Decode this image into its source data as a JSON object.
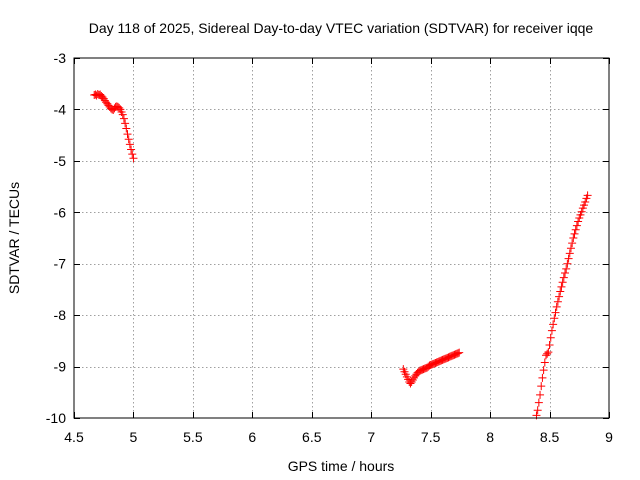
{
  "chart_data": {
    "type": "scatter",
    "title": "Day 118 of 2025, Sidereal Day-to-day VTEC variation (SDTVAR) for receiver iqqe",
    "xlabel": "GPS time / hours",
    "ylabel": "SDTVAR / TECUs",
    "xlim": [
      4.5,
      9
    ],
    "ylim": [
      -10,
      -3
    ],
    "xticks": [
      4.5,
      5,
      5.5,
      6,
      6.5,
      7,
      7.5,
      8,
      8.5,
      9
    ],
    "xtick_labels": [
      "4.5",
      "5",
      "5.5",
      "6",
      "6.5",
      "7",
      "7.5",
      "8",
      "8.5",
      "9"
    ],
    "yticks": [
      -10,
      -9,
      -8,
      -7,
      -6,
      -5,
      -4,
      -3
    ],
    "ytick_labels": [
      "-10",
      "-9",
      "-8",
      "-7",
      "-6",
      "-5",
      "-4",
      "-3"
    ],
    "grid": true,
    "marker": "+",
    "marker_color": "#ff0000",
    "series": [
      {
        "name": "SDTVAR",
        "points": [
          [
            4.67,
            -3.72
          ],
          [
            4.68,
            -3.71
          ],
          [
            4.69,
            -3.73
          ],
          [
            4.7,
            -3.7
          ],
          [
            4.71,
            -3.72
          ],
          [
            4.72,
            -3.71
          ],
          [
            4.73,
            -3.74
          ],
          [
            4.74,
            -3.76
          ],
          [
            4.75,
            -3.79
          ],
          [
            4.76,
            -3.83
          ],
          [
            4.77,
            -3.86
          ],
          [
            4.78,
            -3.89
          ],
          [
            4.79,
            -3.92
          ],
          [
            4.8,
            -3.95
          ],
          [
            4.81,
            -3.98
          ],
          [
            4.82,
            -4.0
          ],
          [
            4.83,
            -4.01
          ],
          [
            4.84,
            -3.98
          ],
          [
            4.85,
            -3.95
          ],
          [
            4.86,
            -3.94
          ],
          [
            4.87,
            -3.95
          ],
          [
            4.88,
            -3.97
          ],
          [
            4.89,
            -4.0
          ],
          [
            4.9,
            -4.05
          ],
          [
            4.91,
            -4.1
          ],
          [
            4.92,
            -4.18
          ],
          [
            4.93,
            -4.27
          ],
          [
            4.94,
            -4.37
          ],
          [
            4.95,
            -4.48
          ],
          [
            4.96,
            -4.58
          ],
          [
            4.97,
            -4.68
          ],
          [
            4.98,
            -4.78
          ],
          [
            4.99,
            -4.87
          ],
          [
            5.0,
            -4.95
          ],
          [
            7.27,
            -9.05
          ],
          [
            7.28,
            -9.1
          ],
          [
            7.29,
            -9.15
          ],
          [
            7.3,
            -9.2
          ],
          [
            7.31,
            -9.25
          ],
          [
            7.32,
            -9.3
          ],
          [
            7.33,
            -9.33
          ],
          [
            7.34,
            -9.3
          ],
          [
            7.35,
            -9.26
          ],
          [
            7.36,
            -9.22
          ],
          [
            7.37,
            -9.18
          ],
          [
            7.38,
            -9.15
          ],
          [
            7.39,
            -9.12
          ],
          [
            7.4,
            -9.1
          ],
          [
            7.41,
            -9.08
          ],
          [
            7.42,
            -9.07
          ],
          [
            7.43,
            -9.06
          ],
          [
            7.44,
            -9.05
          ],
          [
            7.45,
            -9.04
          ],
          [
            7.46,
            -9.03
          ],
          [
            7.47,
            -9.02
          ],
          [
            7.48,
            -9.0
          ],
          [
            7.49,
            -8.98
          ],
          [
            7.5,
            -8.97
          ],
          [
            7.51,
            -8.96
          ],
          [
            7.52,
            -8.95
          ],
          [
            7.53,
            -8.94
          ],
          [
            7.54,
            -8.93
          ],
          [
            7.55,
            -8.92
          ],
          [
            7.56,
            -8.91
          ],
          [
            7.57,
            -8.9
          ],
          [
            7.58,
            -8.89
          ],
          [
            7.59,
            -8.88
          ],
          [
            7.6,
            -8.87
          ],
          [
            7.61,
            -8.86
          ],
          [
            7.62,
            -8.85
          ],
          [
            7.63,
            -8.84
          ],
          [
            7.64,
            -8.83
          ],
          [
            7.65,
            -8.82
          ],
          [
            7.66,
            -8.81
          ],
          [
            7.67,
            -8.8
          ],
          [
            7.68,
            -8.79
          ],
          [
            7.69,
            -8.78
          ],
          [
            7.7,
            -8.77
          ],
          [
            7.71,
            -8.76
          ],
          [
            7.72,
            -8.75
          ],
          [
            7.73,
            -8.74
          ],
          [
            7.74,
            -8.73
          ],
          [
            8.39,
            -9.95
          ],
          [
            8.4,
            -9.85
          ],
          [
            8.41,
            -9.7
          ],
          [
            8.42,
            -9.55
          ],
          [
            8.43,
            -9.38
          ],
          [
            8.44,
            -9.22
          ],
          [
            8.45,
            -9.07
          ],
          [
            8.46,
            -8.92
          ],
          [
            8.47,
            -8.78
          ],
          [
            8.48,
            -8.75
          ],
          [
            8.49,
            -8.72
          ],
          [
            8.5,
            -8.58
          ],
          [
            8.51,
            -8.44
          ],
          [
            8.52,
            -8.3
          ],
          [
            8.53,
            -8.18
          ],
          [
            8.54,
            -8.06
          ],
          [
            8.55,
            -7.95
          ],
          [
            8.56,
            -7.84
          ],
          [
            8.57,
            -7.74
          ],
          [
            8.58,
            -7.64
          ],
          [
            8.59,
            -7.54
          ],
          [
            8.6,
            -7.45
          ],
          [
            8.61,
            -7.36
          ],
          [
            8.62,
            -7.27
          ],
          [
            8.63,
            -7.18
          ],
          [
            8.64,
            -7.1
          ],
          [
            8.65,
            -7.0
          ],
          [
            8.66,
            -6.9
          ],
          [
            8.67,
            -6.8
          ],
          [
            8.68,
            -6.7
          ],
          [
            8.69,
            -6.6
          ],
          [
            8.7,
            -6.5
          ],
          [
            8.71,
            -6.42
          ],
          [
            8.72,
            -6.34
          ],
          [
            8.73,
            -6.26
          ],
          [
            8.74,
            -6.18
          ],
          [
            8.75,
            -6.11
          ],
          [
            8.76,
            -6.05
          ],
          [
            8.77,
            -5.99
          ],
          [
            8.78,
            -5.92
          ],
          [
            8.79,
            -5.86
          ],
          [
            8.8,
            -5.8
          ],
          [
            8.81,
            -5.73
          ],
          [
            8.82,
            -5.67
          ]
        ]
      }
    ]
  }
}
